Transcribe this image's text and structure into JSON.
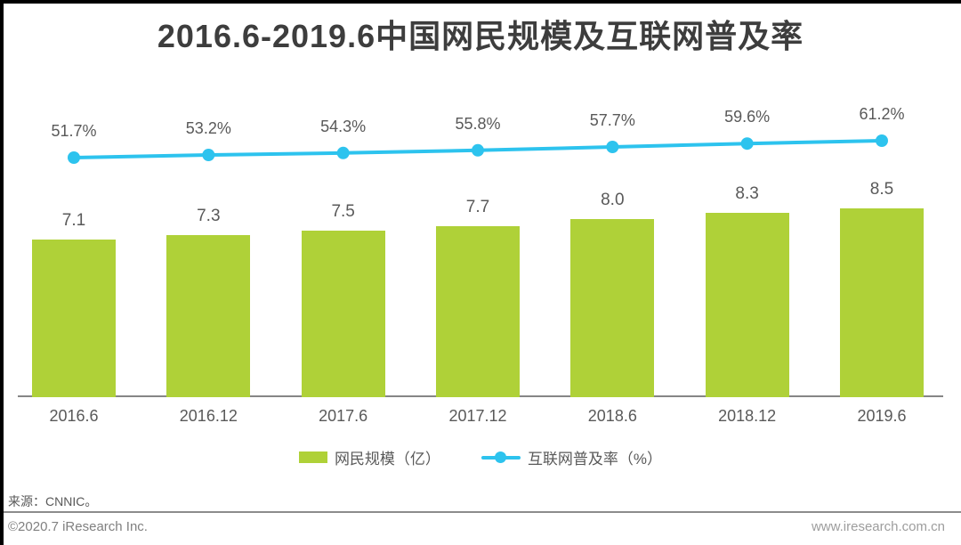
{
  "chart_data": {
    "type": "bar",
    "title": "2016.6-2019.6中国网民规模及互联网普及率",
    "categories": [
      "2016.6",
      "2016.12",
      "2017.6",
      "2017.12",
      "2018.6",
      "2018.12",
      "2019.6"
    ],
    "series": [
      {
        "name": "网民规模（亿）",
        "type": "bar",
        "values": [
          7.1,
          7.3,
          7.5,
          7.7,
          8.0,
          8.3,
          8.5
        ],
        "color": "#afd138"
      },
      {
        "name": "互联网普及率（%）",
        "type": "line",
        "values": [
          51.7,
          53.2,
          54.3,
          55.8,
          57.7,
          59.6,
          61.2
        ],
        "color": "#2dc3ee"
      }
    ],
    "bar_value_labels": [
      "7.1",
      "7.3",
      "7.5",
      "7.7",
      "8.0",
      "8.3",
      "8.5"
    ],
    "line_value_labels": [
      "51.7%",
      "53.2%",
      "54.3%",
      "55.8%",
      "57.7%",
      "59.6%",
      "61.2%"
    ],
    "xlabel": "",
    "ylabel": "",
    "grid": false,
    "legend_position": "bottom"
  },
  "legend": {
    "bar_label": "网民规模（亿）",
    "line_label": "互联网普及率（%）"
  },
  "footer": {
    "source": "来源：CNNIC。",
    "copyright": "©2020.7 iResearch Inc.",
    "website": "www.iresearch.com.cn"
  },
  "colors": {
    "bar_green": "#afd138",
    "line_cyan": "#2dc3ee",
    "title_text": "#3d3d3d",
    "label_text": "#595959",
    "axis_line": "#868686",
    "frame_black": "#000000"
  }
}
